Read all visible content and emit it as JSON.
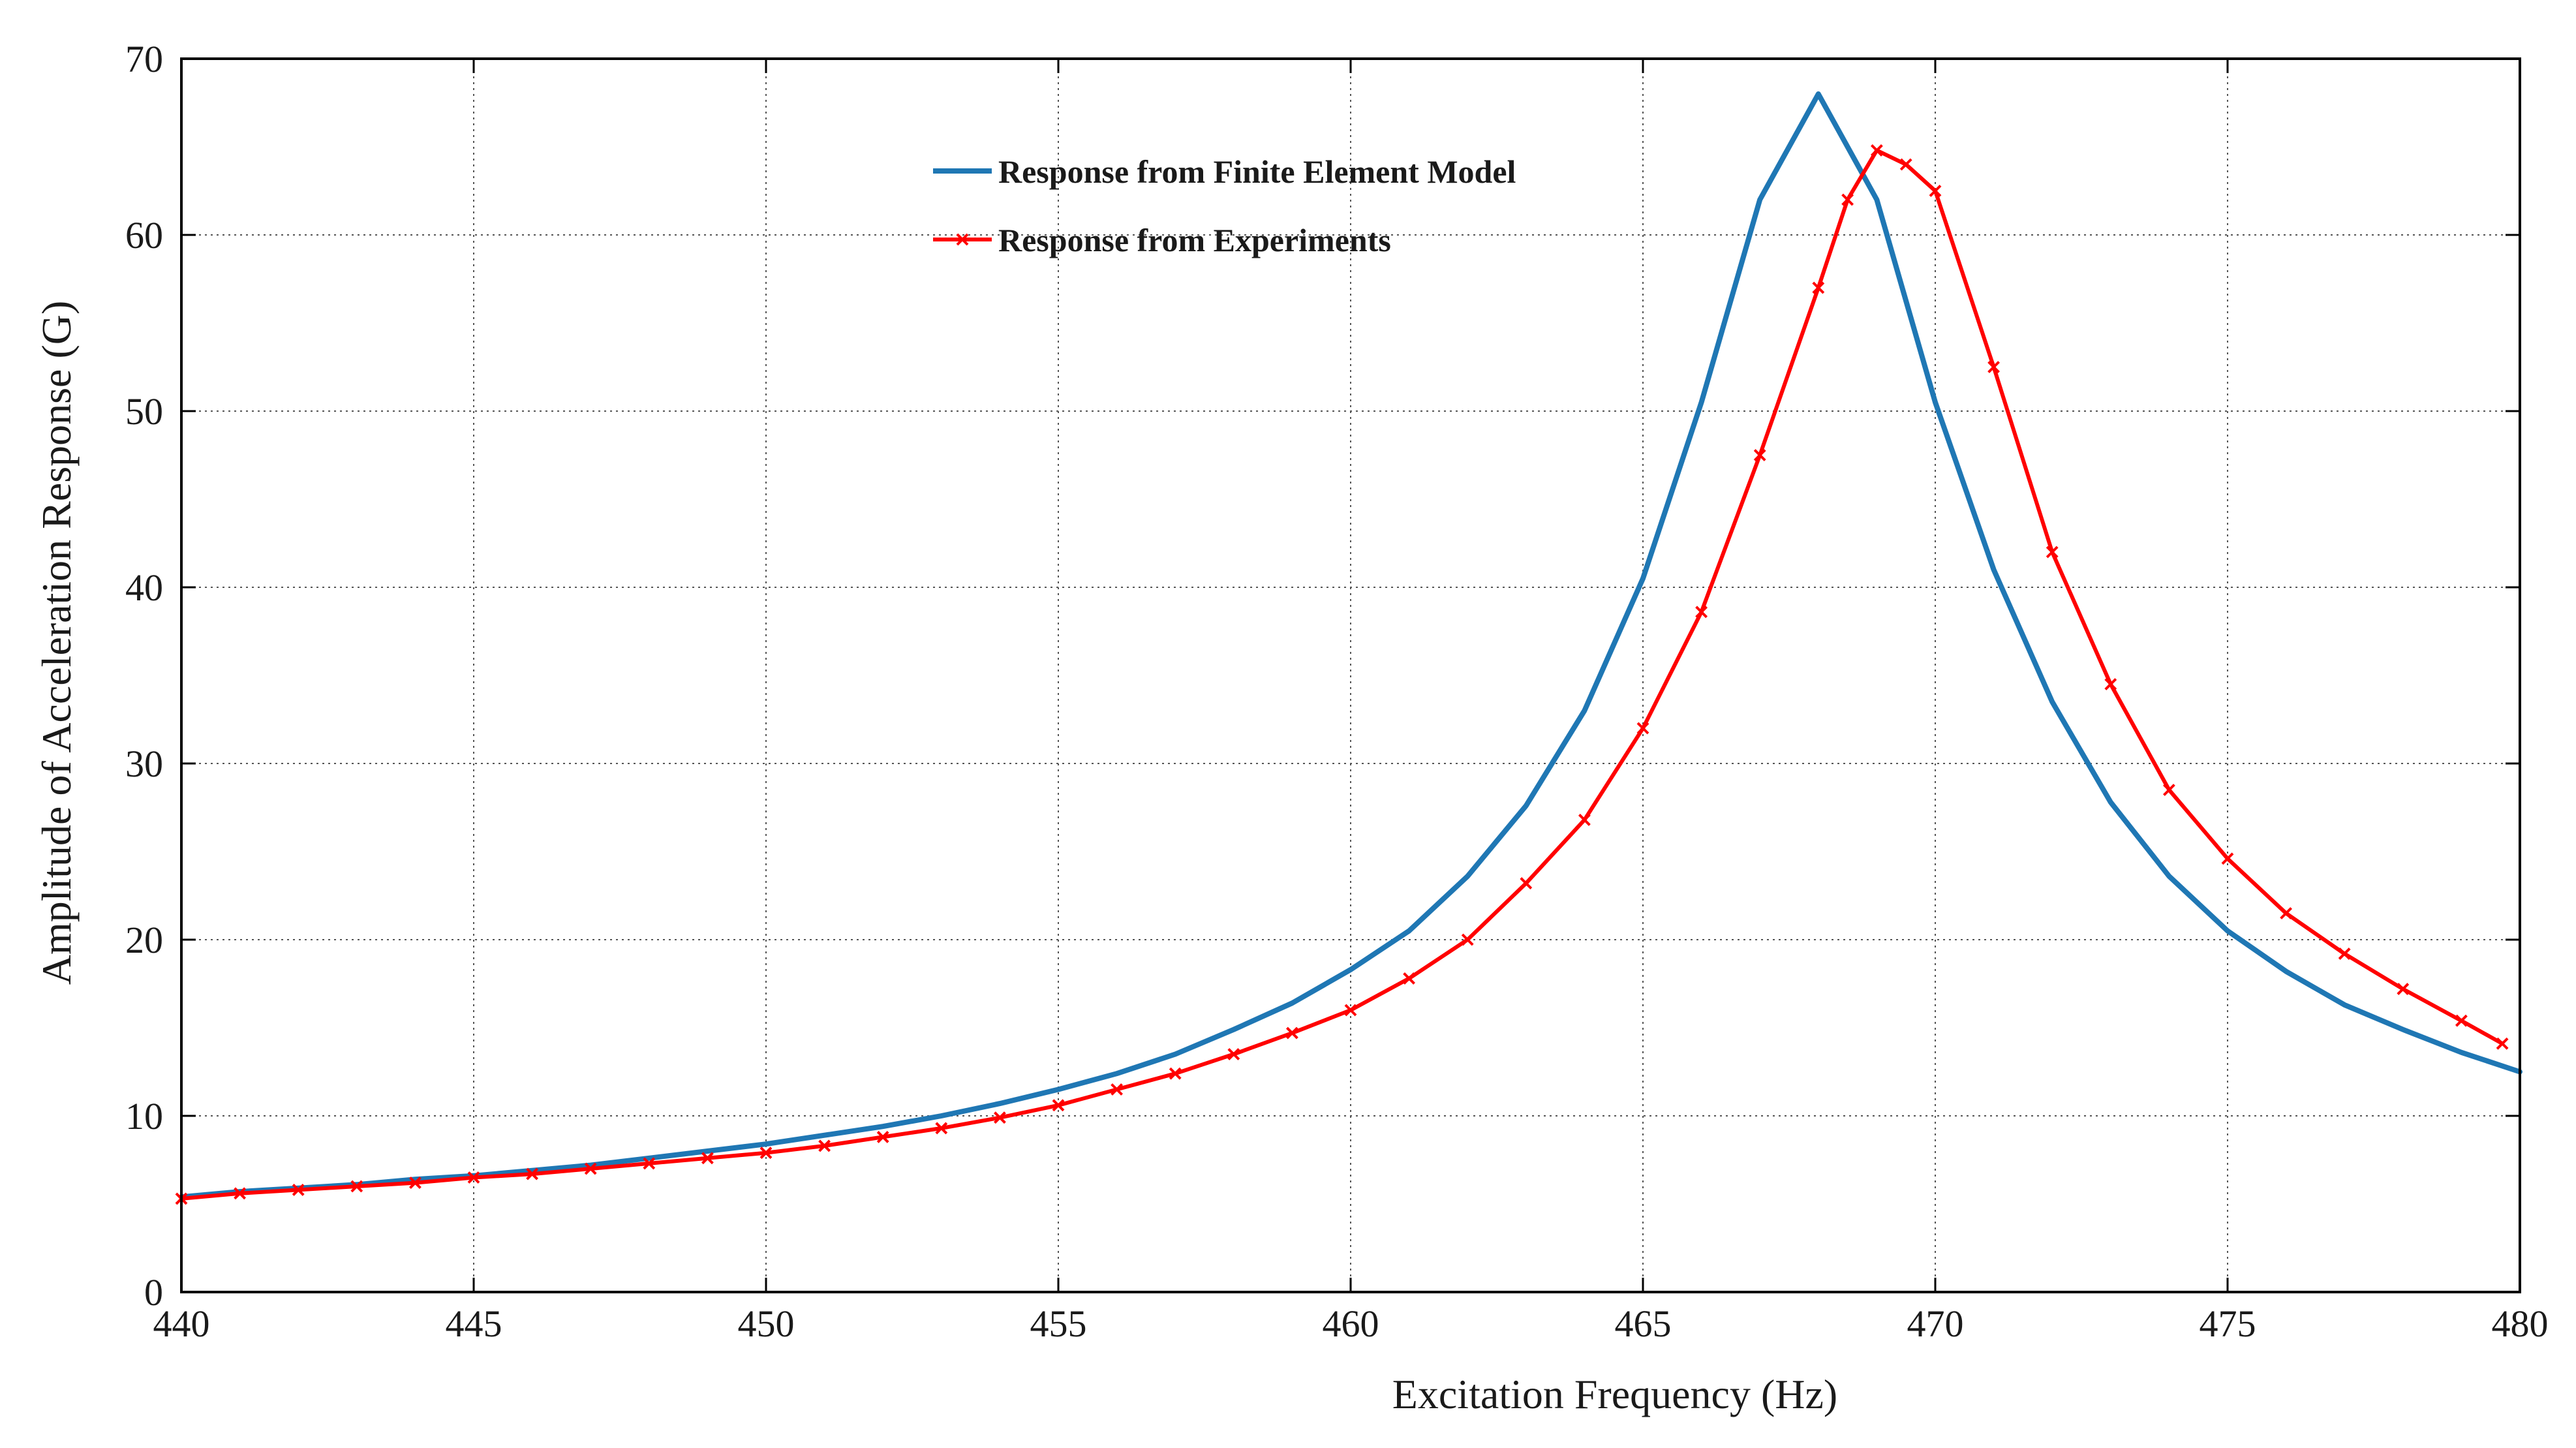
{
  "chart_data": {
    "type": "line",
    "title": "",
    "xlabel": "Excitation Frequency (Hz)",
    "ylabel": "Amplitude of Acceleration Response (G)",
    "xlim": [
      440,
      480
    ],
    "ylim": [
      0,
      70
    ],
    "x_ticks": [
      440,
      445,
      450,
      455,
      460,
      465,
      470,
      475,
      480
    ],
    "y_ticks": [
      0,
      10,
      20,
      30,
      40,
      50,
      60,
      70
    ],
    "x_tick_labels": [
      "440",
      "445",
      "450",
      "455",
      "460",
      "465",
      "470",
      "475",
      "480"
    ],
    "y_tick_labels": [
      "0",
      "10",
      "20",
      "30",
      "40",
      "50",
      "60",
      "70"
    ],
    "grid": true,
    "legend_position": "top-center",
    "series": [
      {
        "name": "Response from Finite Element Model",
        "color": "#1f77b4",
        "marker": "none",
        "x": [
          440,
          441,
          442,
          443,
          444,
          445,
          446,
          447,
          448,
          449,
          450,
          451,
          452,
          453,
          454,
          455,
          456,
          457,
          458,
          459,
          460,
          461,
          462,
          463,
          464,
          465,
          466,
          467,
          468,
          469,
          470,
          471,
          472,
          473,
          474,
          475,
          476,
          477,
          478,
          479,
          480
        ],
        "y": [
          5.4,
          5.7,
          5.9,
          6.1,
          6.4,
          6.6,
          6.9,
          7.2,
          7.6,
          8.0,
          8.4,
          8.9,
          9.4,
          10.0,
          10.7,
          11.5,
          12.4,
          13.5,
          14.9,
          16.4,
          18.3,
          20.5,
          23.6,
          27.6,
          33.0,
          40.5,
          50.5,
          62.0,
          68.0,
          62.0,
          50.5,
          41.0,
          33.5,
          27.8,
          23.6,
          20.5,
          18.2,
          16.3,
          14.9,
          13.6,
          12.5
        ]
      },
      {
        "name": "Response from Experiments",
        "color": "#ff0000",
        "marker": "x",
        "x": [
          440,
          441,
          442,
          443,
          444,
          445,
          446,
          447,
          448,
          449,
          450,
          451,
          452,
          453,
          454,
          455,
          456,
          457,
          458,
          459,
          460,
          461,
          462,
          463,
          464,
          465,
          466,
          467,
          468,
          468.5,
          469,
          469.5,
          470,
          471,
          472,
          473,
          474,
          475,
          476,
          477,
          478,
          479,
          479.7
        ],
        "y": [
          5.3,
          5.6,
          5.8,
          6.0,
          6.2,
          6.5,
          6.7,
          7.0,
          7.3,
          7.6,
          7.9,
          8.3,
          8.8,
          9.3,
          9.9,
          10.6,
          11.5,
          12.4,
          13.5,
          14.7,
          16.0,
          17.8,
          20.0,
          23.2,
          26.8,
          32.0,
          38.6,
          47.5,
          57.0,
          62.0,
          64.8,
          64.0,
          62.5,
          52.5,
          42.0,
          34.5,
          28.5,
          24.6,
          21.5,
          19.2,
          17.2,
          15.4,
          14.1
        ]
      }
    ]
  }
}
